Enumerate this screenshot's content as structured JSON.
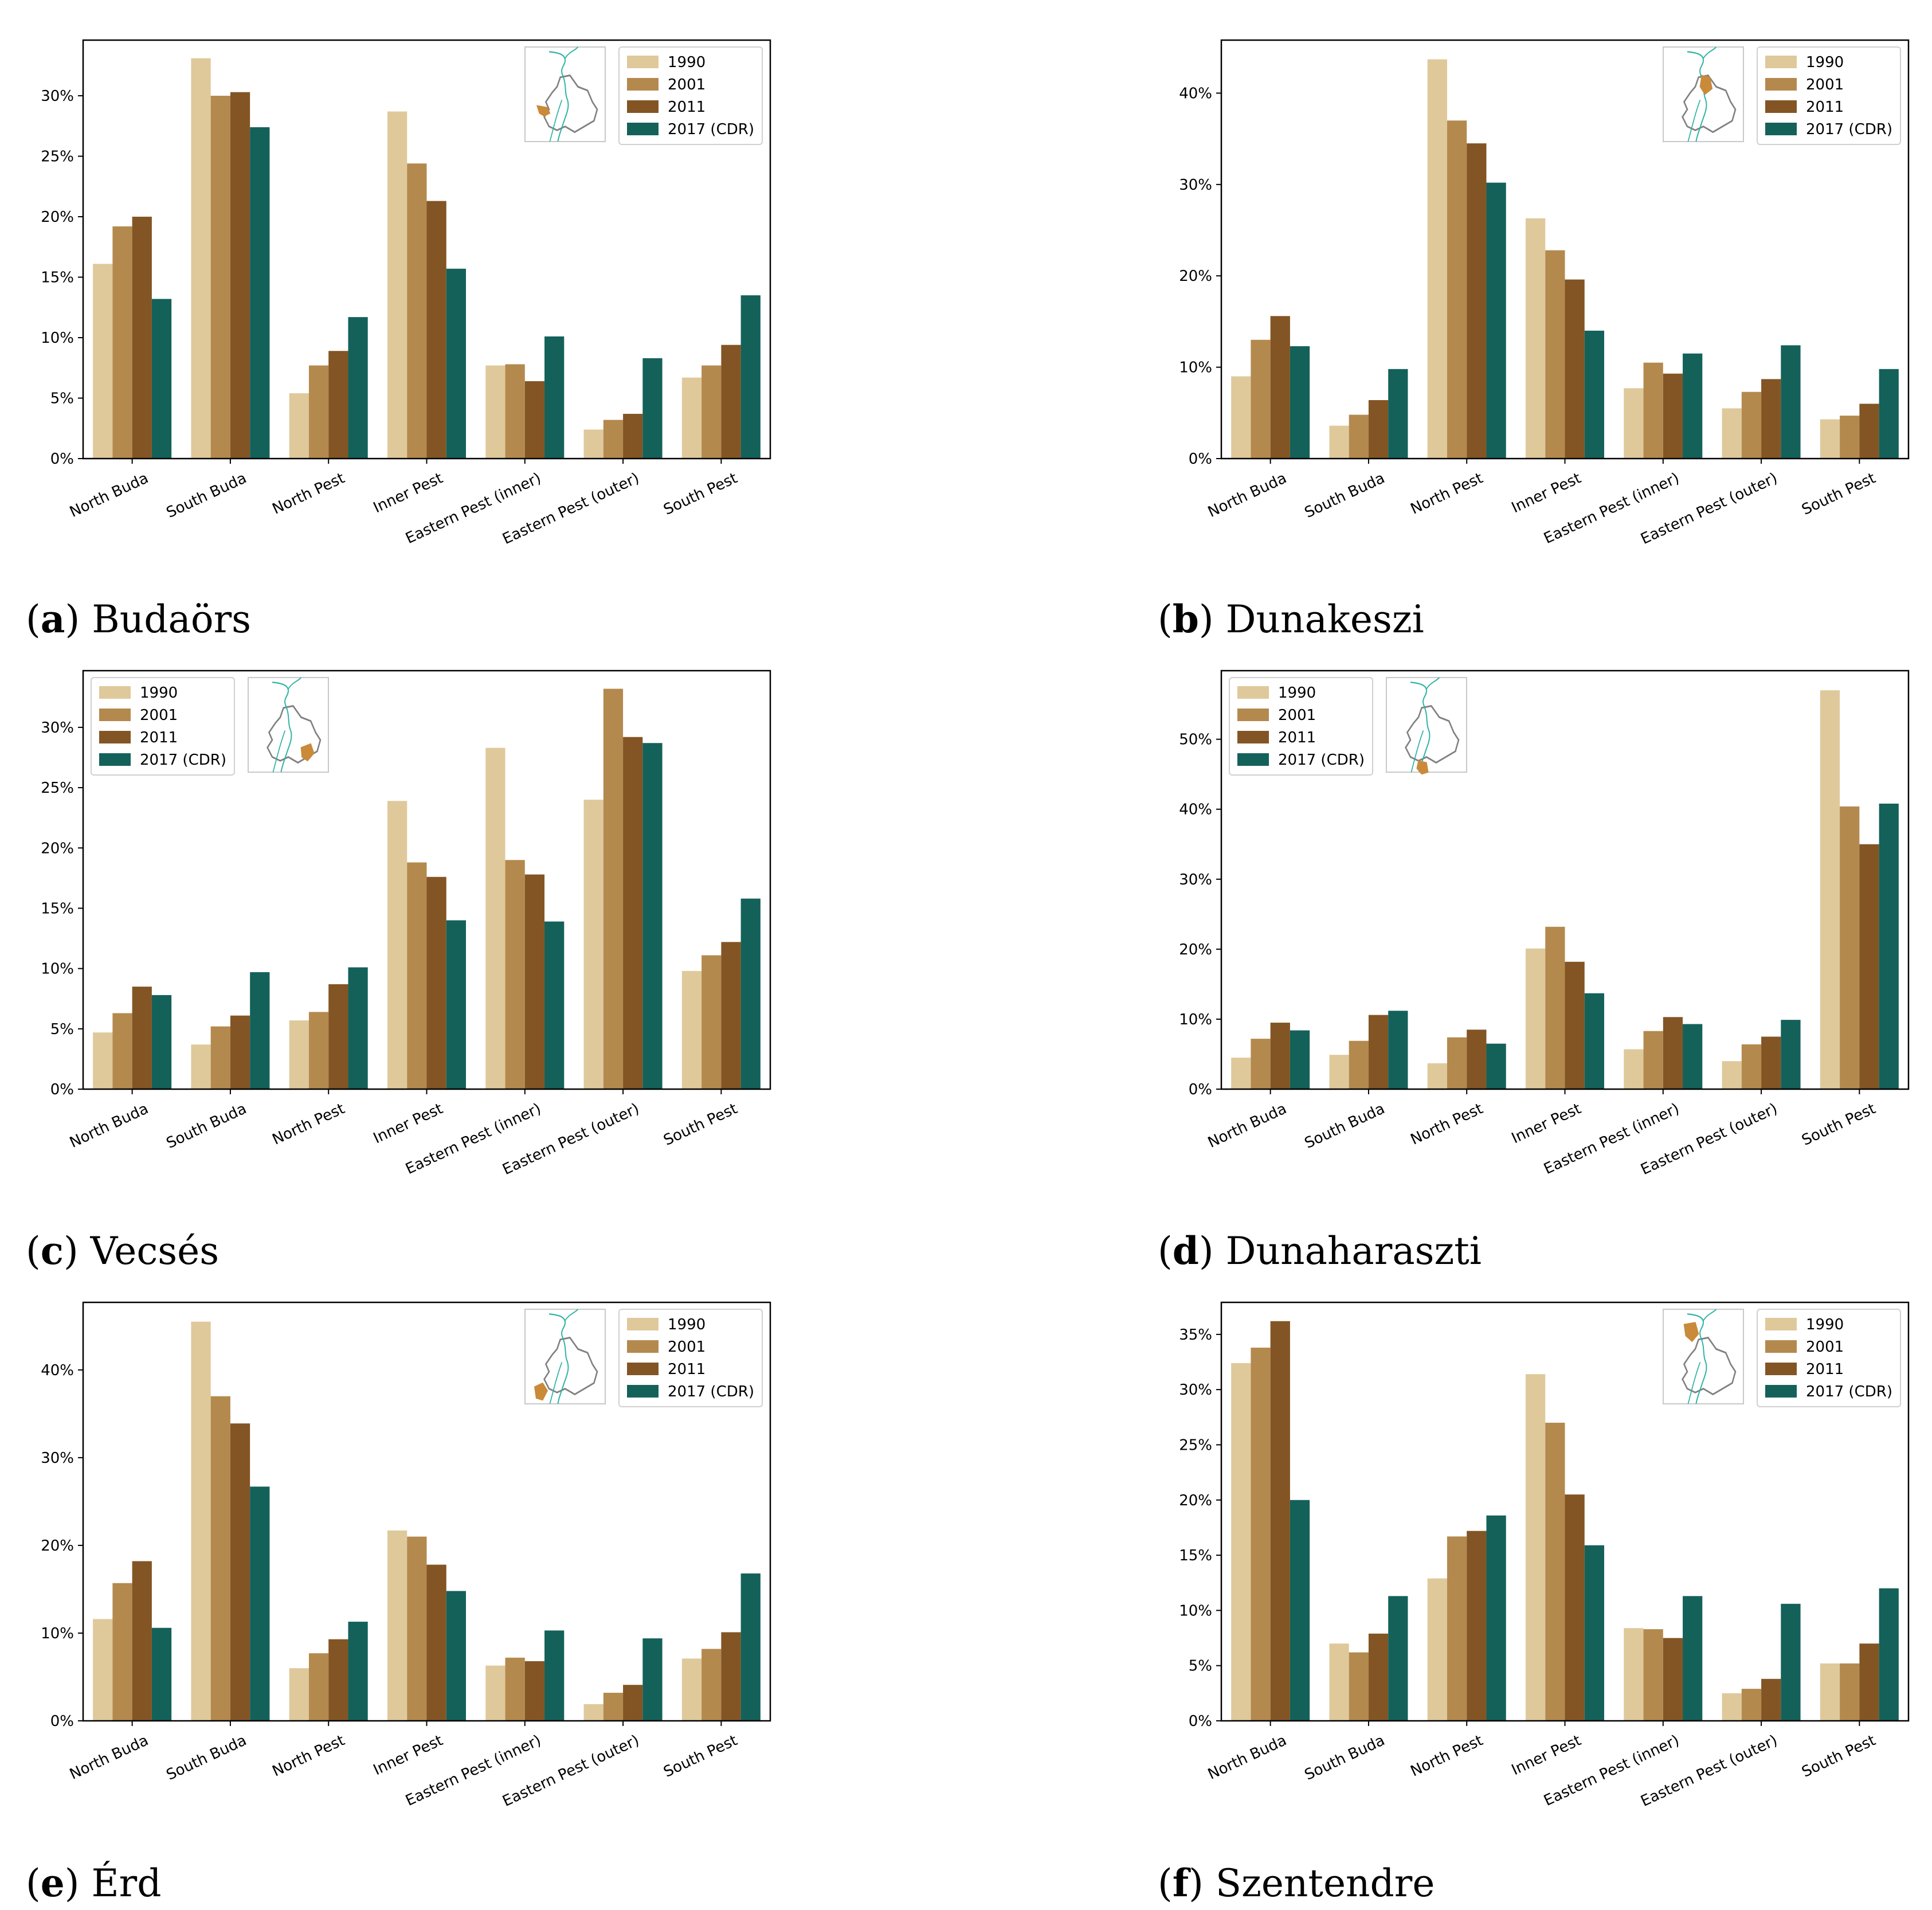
{
  "legend_labels": [
    "1990",
    "2001",
    "2011",
    "2017 (CDR)"
  ],
  "series_colors": [
    "#dfc99b",
    "#b4894e",
    "#835524",
    "#14615a"
  ],
  "map_colors": {
    "river": "#2db3a3",
    "outline": "#808080",
    "highlight": "#c98a3a"
  },
  "chart_data": [
    {
      "type": "bar",
      "panel_letter": "a",
      "caption": "Budaörs",
      "categories": [
        "North Buda",
        "South Buda",
        "North Pest",
        "Inner Pest",
        "Eastern Pest (inner)",
        "Eastern Pest (outer)",
        "South Pest"
      ],
      "series": [
        {
          "name": "1990",
          "values": [
            16.1,
            33.1,
            5.4,
            28.7,
            7.7,
            2.4,
            6.7
          ]
        },
        {
          "name": "2001",
          "values": [
            19.2,
            30.0,
            7.7,
            24.4,
            7.8,
            3.2,
            7.7
          ]
        },
        {
          "name": "2011",
          "values": [
            20.0,
            30.3,
            8.9,
            21.3,
            6.4,
            3.7,
            9.4
          ]
        },
        {
          "name": "2017 (CDR)",
          "values": [
            13.2,
            27.4,
            11.7,
            15.7,
            10.1,
            8.3,
            13.5
          ]
        }
      ],
      "ylim": [
        0,
        34.6
      ],
      "yticks": [
        0,
        5,
        10,
        15,
        20,
        25,
        30
      ],
      "ytick_labels": [
        "0%",
        "5%",
        "10%",
        "15%",
        "20%",
        "25%",
        "30%"
      ],
      "legend_placement": "top-right",
      "inset_map": "top-right",
      "highlight": "west"
    },
    {
      "type": "bar",
      "panel_letter": "b",
      "caption": "Dunakeszi",
      "categories": [
        "North Buda",
        "South Buda",
        "North Pest",
        "Inner Pest",
        "Eastern Pest (inner)",
        "Eastern Pest (outer)",
        "South Pest"
      ],
      "series": [
        {
          "name": "1990",
          "values": [
            9.0,
            3.6,
            43.7,
            26.3,
            7.7,
            5.5,
            4.3
          ]
        },
        {
          "name": "2001",
          "values": [
            13.0,
            4.8,
            37.0,
            22.8,
            10.5,
            7.3,
            4.7
          ]
        },
        {
          "name": "2011",
          "values": [
            15.6,
            6.4,
            34.5,
            19.6,
            9.3,
            8.7,
            6.0
          ]
        },
        {
          "name": "2017 (CDR)",
          "values": [
            12.3,
            9.8,
            30.2,
            14.0,
            11.5,
            12.4,
            9.8
          ]
        }
      ],
      "ylim": [
        0,
        45.8
      ],
      "yticks": [
        0,
        10,
        20,
        30,
        40
      ],
      "ytick_labels": [
        "0%",
        "10%",
        "20%",
        "30%",
        "40%"
      ],
      "legend_placement": "top-right",
      "inset_map": "top-right",
      "highlight": "north"
    },
    {
      "type": "bar",
      "panel_letter": "c",
      "caption": "Vecsés",
      "categories": [
        "North Buda",
        "South Buda",
        "North Pest",
        "Inner Pest",
        "Eastern Pest (inner)",
        "Eastern Pest (outer)",
        "South Pest"
      ],
      "series": [
        {
          "name": "1990",
          "values": [
            4.7,
            3.7,
            5.7,
            23.9,
            28.3,
            24.0,
            9.8
          ]
        },
        {
          "name": "2001",
          "values": [
            6.3,
            5.2,
            6.4,
            18.8,
            19.0,
            33.2,
            11.1
          ]
        },
        {
          "name": "2011",
          "values": [
            8.5,
            6.1,
            8.7,
            17.6,
            17.8,
            29.2,
            12.2
          ]
        },
        {
          "name": "2017 (CDR)",
          "values": [
            7.8,
            9.7,
            10.1,
            14.0,
            13.9,
            28.7,
            15.8
          ]
        }
      ],
      "ylim": [
        0,
        34.7
      ],
      "yticks": [
        0,
        5,
        10,
        15,
        20,
        25,
        30
      ],
      "ytick_labels": [
        "0%",
        "5%",
        "10%",
        "15%",
        "20%",
        "25%",
        "30%"
      ],
      "legend_placement": "top-left",
      "inset_map": "top-left",
      "highlight": "east"
    },
    {
      "type": "bar",
      "panel_letter": "d",
      "caption": "Dunaharaszti",
      "categories": [
        "North Buda",
        "South Buda",
        "North Pest",
        "Inner Pest",
        "Eastern Pest (inner)",
        "Eastern Pest (outer)",
        "South Pest"
      ],
      "series": [
        {
          "name": "1990",
          "values": [
            4.5,
            4.9,
            3.7,
            20.1,
            5.7,
            4.0,
            57.0
          ]
        },
        {
          "name": "2001",
          "values": [
            7.2,
            6.9,
            7.4,
            23.2,
            8.3,
            6.4,
            40.4
          ]
        },
        {
          "name": "2011",
          "values": [
            9.5,
            10.6,
            8.5,
            18.2,
            10.3,
            7.5,
            35.0
          ]
        },
        {
          "name": "2017 (CDR)",
          "values": [
            8.4,
            11.2,
            6.5,
            13.7,
            9.3,
            9.9,
            40.8
          ]
        }
      ],
      "ylim": [
        0,
        59.8
      ],
      "yticks": [
        0,
        10,
        20,
        30,
        40,
        50
      ],
      "ytick_labels": [
        "0%",
        "10%",
        "20%",
        "30%",
        "40%",
        "50%"
      ],
      "legend_placement": "top-left",
      "inset_map": "top-left",
      "highlight": "south"
    },
    {
      "type": "bar",
      "panel_letter": "e",
      "caption": "Érd",
      "categories": [
        "North Buda",
        "South Buda",
        "North Pest",
        "Inner Pest",
        "Eastern Pest (inner)",
        "Eastern Pest (outer)",
        "South Pest"
      ],
      "series": [
        {
          "name": "1990",
          "values": [
            11.6,
            45.5,
            6.0,
            21.7,
            6.3,
            1.9,
            7.1
          ]
        },
        {
          "name": "2001",
          "values": [
            15.7,
            37.0,
            7.7,
            21.0,
            7.2,
            3.2,
            8.2
          ]
        },
        {
          "name": "2011",
          "values": [
            18.2,
            33.9,
            9.3,
            17.8,
            6.8,
            4.1,
            10.1
          ]
        },
        {
          "name": "2017 (CDR)",
          "values": [
            10.6,
            26.7,
            11.3,
            14.8,
            10.3,
            9.4,
            16.8
          ]
        }
      ],
      "ylim": [
        0,
        47.7
      ],
      "yticks": [
        0,
        10,
        20,
        30,
        40
      ],
      "ytick_labels": [
        "0%",
        "10%",
        "20%",
        "30%",
        "40%"
      ],
      "legend_placement": "top-right",
      "inset_map": "top-right",
      "highlight": "southwest"
    },
    {
      "type": "bar",
      "panel_letter": "f",
      "caption": "Szentendre",
      "categories": [
        "North Buda",
        "South Buda",
        "North Pest",
        "Inner Pest",
        "Eastern Pest (inner)",
        "Eastern Pest (outer)",
        "South Pest"
      ],
      "series": [
        {
          "name": "1990",
          "values": [
            32.4,
            7.0,
            12.9,
            31.4,
            8.4,
            2.5,
            5.2
          ]
        },
        {
          "name": "2001",
          "values": [
            33.8,
            6.2,
            16.7,
            27.0,
            8.3,
            2.9,
            5.2
          ]
        },
        {
          "name": "2011",
          "values": [
            36.2,
            7.9,
            17.2,
            20.5,
            7.5,
            3.8,
            7.0
          ]
        },
        {
          "name": "2017 (CDR)",
          "values": [
            20.0,
            11.3,
            18.6,
            15.9,
            11.3,
            10.6,
            12.0
          ]
        }
      ],
      "ylim": [
        0,
        37.9
      ],
      "yticks": [
        0,
        5,
        10,
        15,
        20,
        25,
        30,
        35
      ],
      "ytick_labels": [
        "0%",
        "5%",
        "10%",
        "15%",
        "20%",
        "25%",
        "30%",
        "35%"
      ],
      "legend_placement": "top-right",
      "inset_map": "top-right",
      "highlight": "northwest"
    }
  ]
}
